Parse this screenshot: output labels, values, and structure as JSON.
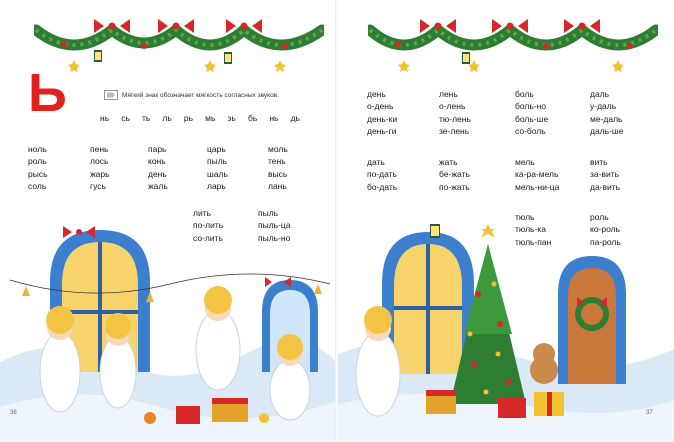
{
  "left_page": {
    "letter": "Ь",
    "rule": "Мягкий знак обозначает мягкость согласных звуков.",
    "syllables": [
      "нь",
      "сь",
      "ть",
      "ль",
      "рь",
      "мь",
      "зь",
      "бь",
      "нь",
      "дь"
    ],
    "columns": [
      [
        "ноль",
        "роль",
        "рысь",
        "соль"
      ],
      [
        "пень",
        "лось",
        "жарь",
        "гусь"
      ],
      [
        "парь",
        "конь",
        "день",
        "жаль"
      ],
      [
        "царь",
        "пыль",
        "шаль",
        "ларь"
      ],
      [
        "моль",
        "тень",
        "высь",
        "лань"
      ],
      [
        "лить",
        "по-лить",
        "со-лить"
      ],
      [
        "пыль",
        "пыль-ца",
        "пыль-но"
      ]
    ],
    "page_number": "36"
  },
  "right_page": {
    "columns": [
      [
        "день",
        "о-день",
        "день-ки",
        "день-ги"
      ],
      [
        "лень",
        "о-лень",
        "тю-лень",
        "зе-лень"
      ],
      [
        "боль",
        "боль-но",
        "боль-ше",
        "со-боль"
      ],
      [
        "даль",
        "у-даль",
        "ме-даль",
        "даль-ше"
      ],
      [
        "дать",
        "по-дать",
        "бо-дать"
      ],
      [
        "жать",
        "бе-жать",
        "по-жать"
      ],
      [
        "мель",
        "ка-ра-мель",
        "мель-ни-ца"
      ],
      [
        "вить",
        "за-вить",
        "да-вить"
      ],
      [
        "тюль",
        "тюль-ка",
        "тюль-пан"
      ],
      [
        "роль",
        "ко-роль",
        "па-роль"
      ]
    ],
    "page_number": "37"
  },
  "colors": {
    "letter": "#e2211c",
    "garland": "#2e7d32",
    "bow": "#d62828",
    "snow": "#dbe9f7",
    "window_frame": "#3d7fcf"
  }
}
